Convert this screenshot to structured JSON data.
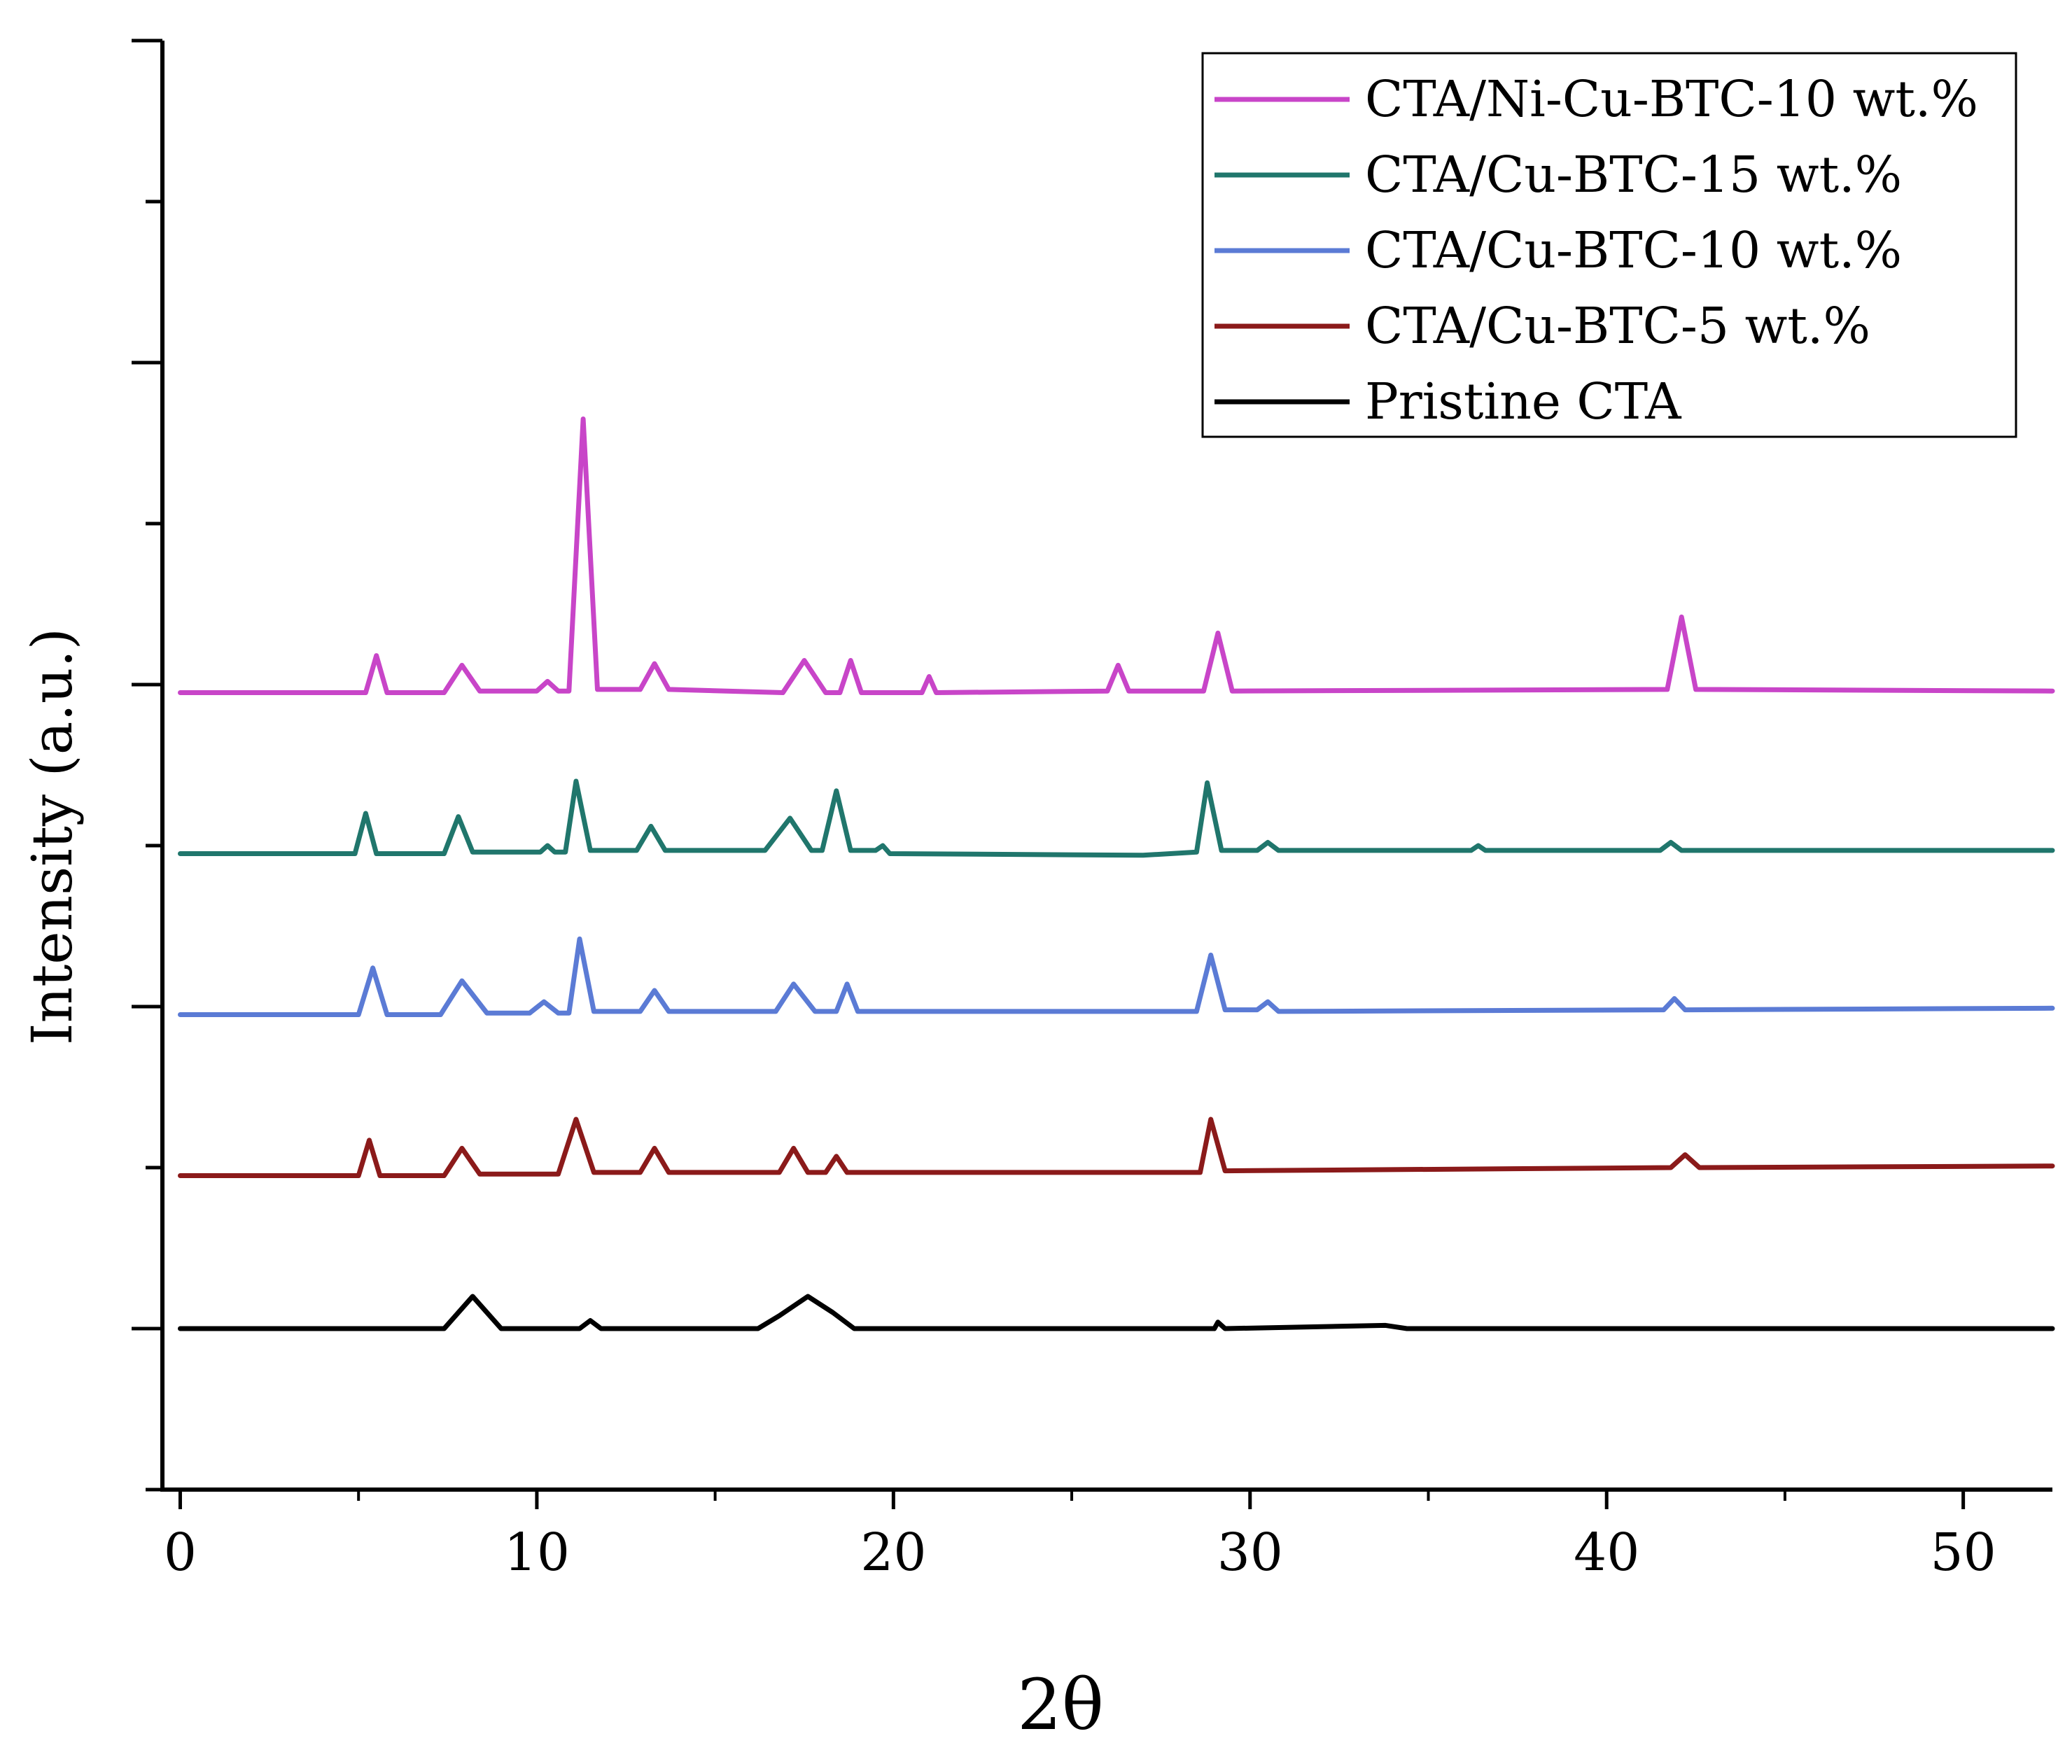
{
  "chart_data": {
    "type": "line",
    "title": "",
    "xlabel": "2θ",
    "ylabel": "Intensity (a.u.)",
    "xlim": [
      -0.5,
      52.5
    ],
    "ylim": [
      -1.0,
      8.0
    ],
    "x_ticks": [
      0,
      10,
      20,
      30,
      40,
      50
    ],
    "x_tick_labels": [
      "0",
      "10",
      "20",
      "30",
      "40",
      "50"
    ],
    "y_tick_labels_shown": false,
    "legend_position": "top-right",
    "series": [
      {
        "name": "Pristine CTA",
        "color": "#000000",
        "baseline": 0,
        "points": [
          [
            0,
            0
          ],
          [
            4,
            0
          ],
          [
            7.4,
            0.0
          ],
          [
            8.2,
            0.2
          ],
          [
            9.0,
            0.0
          ],
          [
            11.2,
            0.0
          ],
          [
            11.5,
            0.05
          ],
          [
            11.8,
            0.0
          ],
          [
            16.2,
            0.0
          ],
          [
            16.8,
            0.08
          ],
          [
            17.6,
            0.2
          ],
          [
            18.3,
            0.1
          ],
          [
            18.9,
            0.0
          ],
          [
            22,
            0.0
          ],
          [
            29,
            0.0
          ],
          [
            29.1,
            0.04
          ],
          [
            29.3,
            0.0
          ],
          [
            33.8,
            0.02
          ],
          [
            34.4,
            0.0
          ],
          [
            52.5,
            0.0
          ]
        ]
      },
      {
        "name": "CTA/Cu-BTC-5 wt.%",
        "color": "#8b1a1a",
        "baseline": 0.95,
        "points": [
          [
            0,
            0.95
          ],
          [
            5.0,
            0.95
          ],
          [
            5.3,
            1.17
          ],
          [
            5.6,
            0.95
          ],
          [
            7.4,
            0.95
          ],
          [
            7.9,
            1.12
          ],
          [
            8.4,
            0.96
          ],
          [
            10.6,
            0.96
          ],
          [
            11.1,
            1.3
          ],
          [
            11.6,
            0.97
          ],
          [
            12.9,
            0.97
          ],
          [
            13.3,
            1.12
          ],
          [
            13.7,
            0.97
          ],
          [
            16.8,
            0.97
          ],
          [
            17.2,
            1.12
          ],
          [
            17.6,
            0.97
          ],
          [
            18.1,
            0.97
          ],
          [
            18.4,
            1.07
          ],
          [
            18.7,
            0.97
          ],
          [
            28.6,
            0.97
          ],
          [
            28.9,
            1.3
          ],
          [
            29.3,
            0.98
          ],
          [
            41.8,
            1.0
          ],
          [
            42.2,
            1.08
          ],
          [
            42.6,
            1.0
          ],
          [
            52.5,
            1.01
          ]
        ]
      },
      {
        "name": "CTA/Cu-BTC-10 wt.%",
        "color": "#5b7bd5",
        "baseline": 1.95,
        "points": [
          [
            0,
            1.95
          ],
          [
            5.0,
            1.95
          ],
          [
            5.4,
            2.24
          ],
          [
            5.8,
            1.95
          ],
          [
            7.3,
            1.95
          ],
          [
            7.9,
            2.16
          ],
          [
            8.6,
            1.96
          ],
          [
            9.8,
            1.96
          ],
          [
            10.2,
            2.03
          ],
          [
            10.6,
            1.96
          ],
          [
            10.9,
            1.96
          ],
          [
            11.2,
            2.42
          ],
          [
            11.6,
            1.97
          ],
          [
            12.9,
            1.97
          ],
          [
            13.3,
            2.1
          ],
          [
            13.7,
            1.97
          ],
          [
            16.7,
            1.97
          ],
          [
            17.2,
            2.14
          ],
          [
            17.8,
            1.97
          ],
          [
            18.4,
            1.97
          ],
          [
            18.7,
            2.14
          ],
          [
            19.0,
            1.97
          ],
          [
            28.5,
            1.97
          ],
          [
            28.9,
            2.32
          ],
          [
            29.3,
            1.98
          ],
          [
            30.2,
            1.98
          ],
          [
            30.5,
            2.03
          ],
          [
            30.8,
            1.97
          ],
          [
            41.6,
            1.98
          ],
          [
            41.9,
            2.05
          ],
          [
            42.2,
            1.98
          ],
          [
            52.5,
            1.99
          ]
        ]
      },
      {
        "name": "CTA/Cu-BTC-15 wt.%",
        "color": "#20766c",
        "baseline": 2.95,
        "points": [
          [
            0,
            2.95
          ],
          [
            4.9,
            2.95
          ],
          [
            5.2,
            3.2
          ],
          [
            5.5,
            2.95
          ],
          [
            7.4,
            2.95
          ],
          [
            7.8,
            3.18
          ],
          [
            8.2,
            2.96
          ],
          [
            10.1,
            2.96
          ],
          [
            10.3,
            3.0
          ],
          [
            10.5,
            2.96
          ],
          [
            10.8,
            2.96
          ],
          [
            11.1,
            3.4
          ],
          [
            11.5,
            2.97
          ],
          [
            12.8,
            2.97
          ],
          [
            13.2,
            3.12
          ],
          [
            13.6,
            2.97
          ],
          [
            16.4,
            2.97
          ],
          [
            17.1,
            3.17
          ],
          [
            17.7,
            2.97
          ],
          [
            18.0,
            2.97
          ],
          [
            18.4,
            3.34
          ],
          [
            18.8,
            2.97
          ],
          [
            19.5,
            2.97
          ],
          [
            19.7,
            3.0
          ],
          [
            19.9,
            2.95
          ],
          [
            27.0,
            2.94
          ],
          [
            28.5,
            2.96
          ],
          [
            28.8,
            3.39
          ],
          [
            29.2,
            2.97
          ],
          [
            30.2,
            2.97
          ],
          [
            30.5,
            3.02
          ],
          [
            30.8,
            2.97
          ],
          [
            36.2,
            2.97
          ],
          [
            36.4,
            3.0
          ],
          [
            36.6,
            2.97
          ],
          [
            41.5,
            2.97
          ],
          [
            41.8,
            3.02
          ],
          [
            42.1,
            2.97
          ],
          [
            52.5,
            2.97
          ]
        ]
      },
      {
        "name": "CTA/Ni-Cu-BTC-10 wt.%",
        "color": "#c845c8",
        "baseline": 3.95,
        "points": [
          [
            0,
            3.95
          ],
          [
            5.2,
            3.95
          ],
          [
            5.5,
            4.18
          ],
          [
            5.8,
            3.95
          ],
          [
            7.4,
            3.95
          ],
          [
            7.9,
            4.12
          ],
          [
            8.4,
            3.96
          ],
          [
            10.0,
            3.96
          ],
          [
            10.3,
            4.02
          ],
          [
            10.6,
            3.96
          ],
          [
            10.9,
            3.96
          ],
          [
            11.3,
            5.65
          ],
          [
            11.7,
            3.97
          ],
          [
            12.9,
            3.97
          ],
          [
            13.3,
            4.13
          ],
          [
            13.7,
            3.97
          ],
          [
            16.9,
            3.95
          ],
          [
            17.5,
            4.15
          ],
          [
            18.1,
            3.95
          ],
          [
            18.5,
            3.95
          ],
          [
            18.8,
            4.15
          ],
          [
            19.1,
            3.95
          ],
          [
            20.8,
            3.95
          ],
          [
            21.0,
            4.05
          ],
          [
            21.2,
            3.95
          ],
          [
            26.0,
            3.96
          ],
          [
            26.3,
            4.12
          ],
          [
            26.6,
            3.96
          ],
          [
            28.7,
            3.96
          ],
          [
            29.1,
            4.32
          ],
          [
            29.5,
            3.96
          ],
          [
            41.7,
            3.97
          ],
          [
            42.1,
            4.42
          ],
          [
            42.5,
            3.97
          ],
          [
            52.5,
            3.96
          ]
        ]
      }
    ]
  }
}
